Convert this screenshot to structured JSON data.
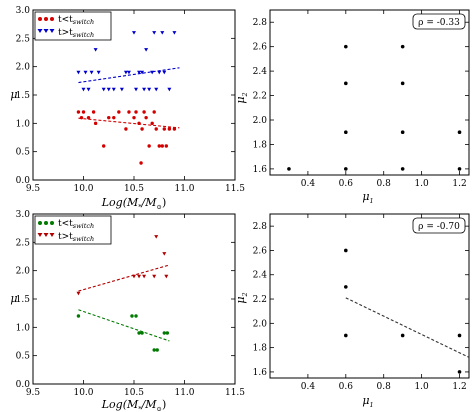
{
  "chart_data": [
    {
      "type": "scatter",
      "xlabel": "",
      "ylabel": "μ",
      "xlim": [
        9.5,
        11.5
      ],
      "ylim": [
        0.0,
        3.0
      ],
      "xticks": [
        "9.5",
        "10.0",
        "10.5",
        "11.0",
        "11.5"
      ],
      "yticks": [
        "0.0",
        "0.5",
        "1.0",
        "1.5",
        "2.0",
        "2.5",
        "3.0"
      ],
      "legend_position": "top-left",
      "series": [
        {
          "name": "t<t_switch",
          "color": "#d40000",
          "marker": "circle",
          "points": [
            [
              9.95,
              1.2
            ],
            [
              9.98,
              1.1
            ],
            [
              10.0,
              1.2
            ],
            [
              10.05,
              1.1
            ],
            [
              10.1,
              1.2
            ],
            [
              10.12,
              1.0
            ],
            [
              10.2,
              0.6
            ],
            [
              10.3,
              1.1
            ],
            [
              10.35,
              1.2
            ],
            [
              10.45,
              1.2
            ],
            [
              10.5,
              1.1
            ],
            [
              10.52,
              1.2
            ],
            [
              10.55,
              1.0
            ],
            [
              10.58,
              0.9
            ],
            [
              10.6,
              1.2
            ],
            [
              10.62,
              1.1
            ],
            [
              10.65,
              0.6
            ],
            [
              10.68,
              1.0
            ],
            [
              10.7,
              1.2
            ],
            [
              10.72,
              0.9
            ],
            [
              10.75,
              0.6
            ],
            [
              10.78,
              0.6
            ],
            [
              10.8,
              0.9
            ],
            [
              10.82,
              0.6
            ],
            [
              10.85,
              0.9
            ],
            [
              10.9,
              0.9
            ],
            [
              10.57,
              0.3
            ],
            [
              10.42,
              0.9
            ],
            [
              10.25,
              1.1
            ]
          ],
          "trend": {
            "x": [
              9.95,
              10.95
            ],
            "y": [
              1.09,
              0.92
            ]
          }
        },
        {
          "name": "t>t_switch",
          "color": "#0000cc",
          "marker": "triangle-down",
          "points": [
            [
              9.95,
              1.9
            ],
            [
              10.0,
              1.6
            ],
            [
              10.02,
              1.9
            ],
            [
              10.05,
              1.6
            ],
            [
              10.08,
              1.9
            ],
            [
              10.12,
              2.3
            ],
            [
              10.15,
              1.9
            ],
            [
              10.2,
              1.6
            ],
            [
              10.25,
              1.6
            ],
            [
              10.3,
              1.6
            ],
            [
              10.38,
              1.6
            ],
            [
              10.42,
              1.9
            ],
            [
              10.45,
              1.9
            ],
            [
              10.5,
              2.6
            ],
            [
              10.52,
              1.6
            ],
            [
              10.55,
              1.9
            ],
            [
              10.58,
              1.9
            ],
            [
              10.6,
              1.6
            ],
            [
              10.62,
              2.3
            ],
            [
              10.65,
              1.6
            ],
            [
              10.68,
              1.9
            ],
            [
              10.7,
              2.6
            ],
            [
              10.72,
              1.6
            ],
            [
              10.75,
              1.9
            ],
            [
              10.78,
              2.6
            ],
            [
              10.8,
              1.9
            ],
            [
              10.85,
              1.6
            ],
            [
              10.9,
              2.6
            ]
          ],
          "trend": {
            "x": [
              9.95,
              10.95
            ],
            "y": [
              1.72,
              1.98
            ]
          }
        }
      ]
    },
    {
      "type": "scatter",
      "xlabel": "μ1",
      "ylabel": "μ2",
      "xlim": [
        0.2,
        1.25
      ],
      "ylim": [
        1.55,
        2.9
      ],
      "xticks": [
        "0.4",
        "0.6",
        "0.8",
        "1.0",
        "1.2"
      ],
      "yticks": [
        "1.6",
        "1.8",
        "2.0",
        "2.2",
        "2.4",
        "2.6",
        "2.8"
      ],
      "annotation": "ρ = -0.33",
      "series": [
        {
          "name": "",
          "color": "#000000",
          "marker": "circle",
          "points": [
            [
              0.3,
              1.6
            ],
            [
              0.6,
              1.6
            ],
            [
              0.9,
              1.6
            ],
            [
              1.2,
              1.6
            ],
            [
              0.6,
              1.9
            ],
            [
              0.9,
              1.9
            ],
            [
              1.2,
              1.9
            ],
            [
              0.6,
              2.3
            ],
            [
              0.9,
              2.3
            ],
            [
              0.6,
              2.6
            ],
            [
              0.9,
              2.6
            ]
          ]
        }
      ]
    },
    {
      "type": "scatter",
      "xlabel": "",
      "ylabel": "μ",
      "xlim": [
        9.5,
        11.5
      ],
      "ylim": [
        0.0,
        3.0
      ],
      "xticks": [
        "9.5",
        "10.0",
        "10.5",
        "11.0",
        "11.5"
      ],
      "yticks": [
        "0.0",
        "0.5",
        "1.0",
        "1.5",
        "2.0",
        "2.5",
        "3.0"
      ],
      "legend_position": "top-left",
      "series": [
        {
          "name": "t<t_switch",
          "color": "#007a00",
          "marker": "circle",
          "points": [
            [
              9.95,
              1.2
            ],
            [
              10.48,
              1.2
            ],
            [
              10.52,
              1.2
            ],
            [
              10.55,
              0.9
            ],
            [
              10.58,
              0.9
            ],
            [
              10.7,
              0.6
            ],
            [
              10.73,
              0.6
            ],
            [
              10.8,
              0.9
            ],
            [
              10.83,
              0.9
            ]
          ],
          "trend": {
            "x": [
              9.95,
              10.85
            ],
            "y": [
              1.31,
              0.76
            ]
          }
        },
        {
          "name": "t>t_switch",
          "color": "#b00000",
          "marker": "triangle-down",
          "points": [
            [
              9.95,
              1.6
            ],
            [
              10.5,
              1.9
            ],
            [
              10.55,
              1.9
            ],
            [
              10.6,
              1.9
            ],
            [
              10.7,
              1.9
            ],
            [
              10.72,
              2.6
            ],
            [
              10.82,
              1.9
            ],
            [
              10.8,
              2.3
            ]
          ],
          "trend": {
            "x": [
              9.95,
              10.85
            ],
            "y": [
              1.64,
              2.1
            ]
          }
        }
      ]
    },
    {
      "type": "scatter",
      "xlabel": "μ1",
      "ylabel": "μ2",
      "xlim": [
        0.2,
        1.25
      ],
      "ylim": [
        1.55,
        2.9
      ],
      "xticks": [
        "0.4",
        "0.6",
        "0.8",
        "1.0",
        "1.2"
      ],
      "yticks": [
        "1.6",
        "1.8",
        "2.0",
        "2.2",
        "2.4",
        "2.6",
        "2.8"
      ],
      "annotation": "ρ = -0.70",
      "series": [
        {
          "name": "",
          "color": "#000000",
          "marker": "circle",
          "points": [
            [
              0.6,
              2.6
            ],
            [
              0.6,
              2.3
            ],
            [
              0.6,
              1.9
            ],
            [
              0.9,
              1.9
            ],
            [
              1.2,
              1.9
            ],
            [
              1.2,
              1.6
            ]
          ],
          "trend": {
            "x": [
              0.6,
              1.25
            ],
            "y": [
              2.21,
              1.72
            ]
          }
        }
      ]
    }
  ],
  "texts": {
    "xlabel_log": "Log(M",
    "xlabel_star": "*",
    "xlabel_mid": "/M",
    "xlabel_sun": "⊙",
    "xlabel_end": ")",
    "mu": "μ",
    "mu2_base": "μ",
    "mu2_sub": "2",
    "mu1_base": "μ",
    "mu1_sub": "1",
    "legend_lt": "t<t",
    "legend_gt": "t>t",
    "legend_sub": "switch",
    "corr_top": "ρ = -0.33",
    "corr_bottom": "ρ = -0.70"
  }
}
